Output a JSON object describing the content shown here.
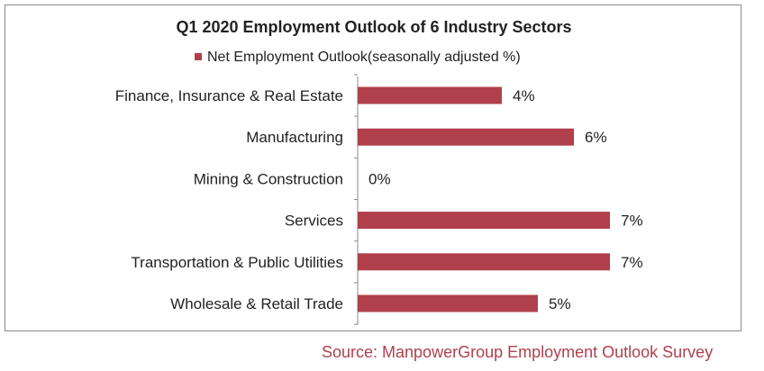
{
  "chart_data": {
    "type": "bar",
    "orientation": "horizontal",
    "title": "Q1 2020 Employment Outlook of 6 Industry Sectors",
    "legend": {
      "position": "top",
      "label": "Net Employment Outlook(seasonally adjusted %)"
    },
    "categories": [
      "Finance, Insurance & Real Estate",
      "Manufacturing",
      "Mining & Construction",
      "Services",
      "Transportation & Public Utilities",
      "Wholesale & Retail Trade"
    ],
    "series": [
      {
        "name": "Net Employment Outlook(seasonally adjusted %)",
        "values": [
          4,
          6,
          0,
          7,
          7,
          5
        ],
        "data_labels": [
          "4%",
          "6%",
          "0%",
          "7%",
          "7%",
          "5%"
        ],
        "color": "#b0404c"
      }
    ],
    "xlim": [
      0,
      7
    ],
    "grid": false,
    "value_axis_visible": false
  },
  "source": "Source: ManpowerGroup Employment Outlook Survey"
}
